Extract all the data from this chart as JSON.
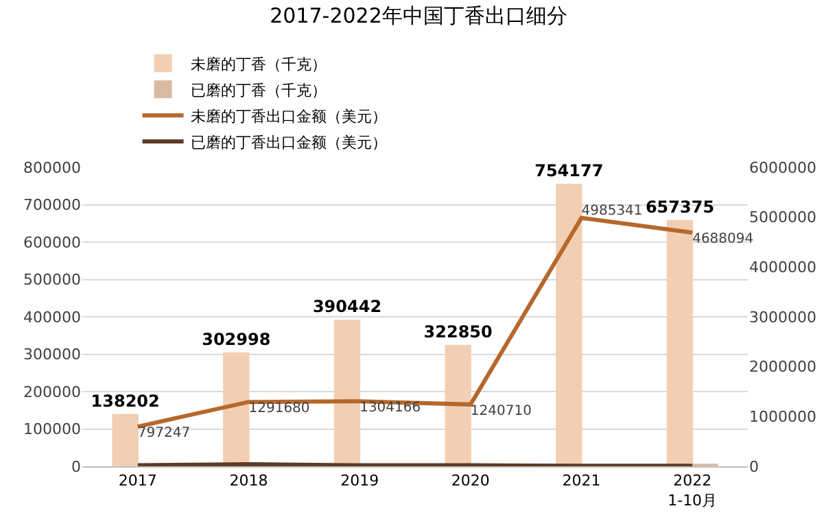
{
  "chart_data": {
    "type": "bar",
    "title": "2017-2022年中国丁香出口细分",
    "categories": [
      "2017",
      "2018",
      "2019",
      "2020",
      "2021",
      "2022\n1-10月"
    ],
    "series": [
      {
        "name": "未磨的丁香（千克）",
        "color": "#f2cfb3",
        "values": [
          138202,
          302998,
          390442,
          322850,
          754177,
          657375
        ],
        "value_labels": [
          "138202",
          "302998",
          "390442",
          "322850",
          "754177",
          "657375"
        ]
      },
      {
        "name": "已磨的丁香（千克）",
        "color": "#d9bba3",
        "values": [
          0,
          0,
          0,
          0,
          0,
          5000
        ]
      },
      {
        "name": "未磨的丁香出口金额（美元）",
        "type": "line",
        "axis": "y2",
        "color": "#b5682c",
        "values": [
          797247,
          1291680,
          1304166,
          1240710,
          4985341,
          4688094
        ],
        "value_labels": [
          "797247",
          "1291680",
          "1304166",
          "1240710",
          "4985341",
          "4688094"
        ]
      },
      {
        "name": "已磨的丁香出口金额（美元）",
        "type": "line",
        "axis": "y2",
        "color": "#5c3b22",
        "values": [
          20000,
          40000,
          20000,
          20000,
          10000,
          10000
        ]
      }
    ],
    "ylim": [
      0,
      800000
    ],
    "yticks": [
      0,
      100000,
      200000,
      300000,
      400000,
      500000,
      600000,
      700000,
      800000
    ],
    "y2lim": [
      0,
      6000000
    ],
    "y2ticks": [
      0,
      1000000,
      2000000,
      3000000,
      4000000,
      5000000,
      6000000
    ],
    "grid": "y",
    "legend": "top",
    "marker": "none",
    "line_style": "solid"
  }
}
